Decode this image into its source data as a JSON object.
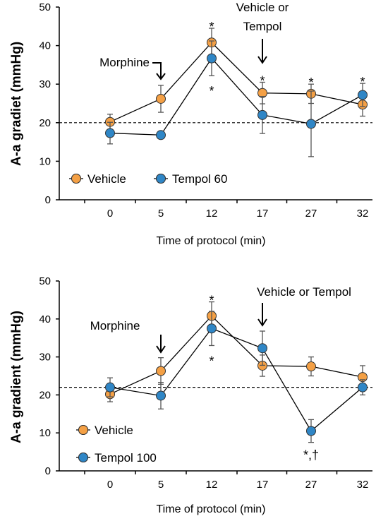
{
  "chart_data": [
    {
      "type": "line",
      "title": "",
      "xlabel": "Time of protocol (min)",
      "ylabel": "A-a gradiet (mmHg)",
      "ylim": [
        0,
        50
      ],
      "yticks": [
        0,
        10,
        20,
        30,
        40,
        50
      ],
      "categories": [
        "0",
        "5",
        "12",
        "17",
        "27",
        "32"
      ],
      "reference_line": 20,
      "legend_position": "bottom-left",
      "series": [
        {
          "name": "Vehicle",
          "color": "#f4a045",
          "values": [
            20.2,
            26.2,
            40.8,
            27.7,
            27.5,
            24.7
          ],
          "errors": [
            2.0,
            3.5,
            3.7,
            2.8,
            2.5,
            3.0
          ]
        },
        {
          "name": "Tempol 60",
          "color": "#2f86c6",
          "values": [
            17.3,
            16.8,
            36.7,
            22.0,
            19.7,
            27.2
          ],
          "errors": [
            2.8,
            0.0,
            4.5,
            4.8,
            8.5,
            3.0
          ]
        }
      ],
      "annotations": [
        {
          "text": "Morphine",
          "category": "5"
        },
        {
          "text": "Vehicle or",
          "text2": "Tempol",
          "category": "17"
        }
      ],
      "significance_marks": [
        {
          "text": "*",
          "category": "12",
          "position": "above"
        },
        {
          "text": "*",
          "category": "12",
          "position": "below"
        },
        {
          "text": "*",
          "category": "17",
          "position": "above"
        },
        {
          "text": "*",
          "category": "27",
          "position": "above"
        },
        {
          "text": "*",
          "category": "32",
          "position": "above"
        }
      ]
    },
    {
      "type": "line",
      "title": "",
      "xlabel": "Time of protocol (min)",
      "ylabel": "A-a gradient (mmHg)",
      "ylim": [
        0,
        50
      ],
      "yticks": [
        0,
        10,
        20,
        30,
        40,
        50
      ],
      "categories": [
        "0",
        "5",
        "12",
        "17",
        "27",
        "32"
      ],
      "reference_line": 22,
      "legend_position": "bottom-left",
      "series": [
        {
          "name": "Vehicle",
          "color": "#f4a045",
          "values": [
            20.2,
            26.3,
            40.8,
            27.7,
            27.5,
            24.7
          ],
          "errors": [
            2.0,
            3.5,
            3.7,
            2.8,
            2.5,
            3.0
          ]
        },
        {
          "name": "Tempol 100",
          "color": "#2f86c6",
          "values": [
            22.0,
            19.8,
            37.5,
            32.3,
            10.5,
            22.0
          ],
          "errors": [
            2.5,
            3.5,
            4.5,
            4.5,
            3.0,
            2.0
          ]
        }
      ],
      "annotations": [
        {
          "text": "Morphine",
          "category": "5"
        },
        {
          "text": "Vehicle or Tempol",
          "category": "17"
        }
      ],
      "significance_marks": [
        {
          "text": "*",
          "category": "12",
          "position": "above"
        },
        {
          "text": "*",
          "category": "12",
          "position": "below"
        },
        {
          "text": "*,†",
          "category": "27",
          "position": "below"
        }
      ]
    }
  ]
}
